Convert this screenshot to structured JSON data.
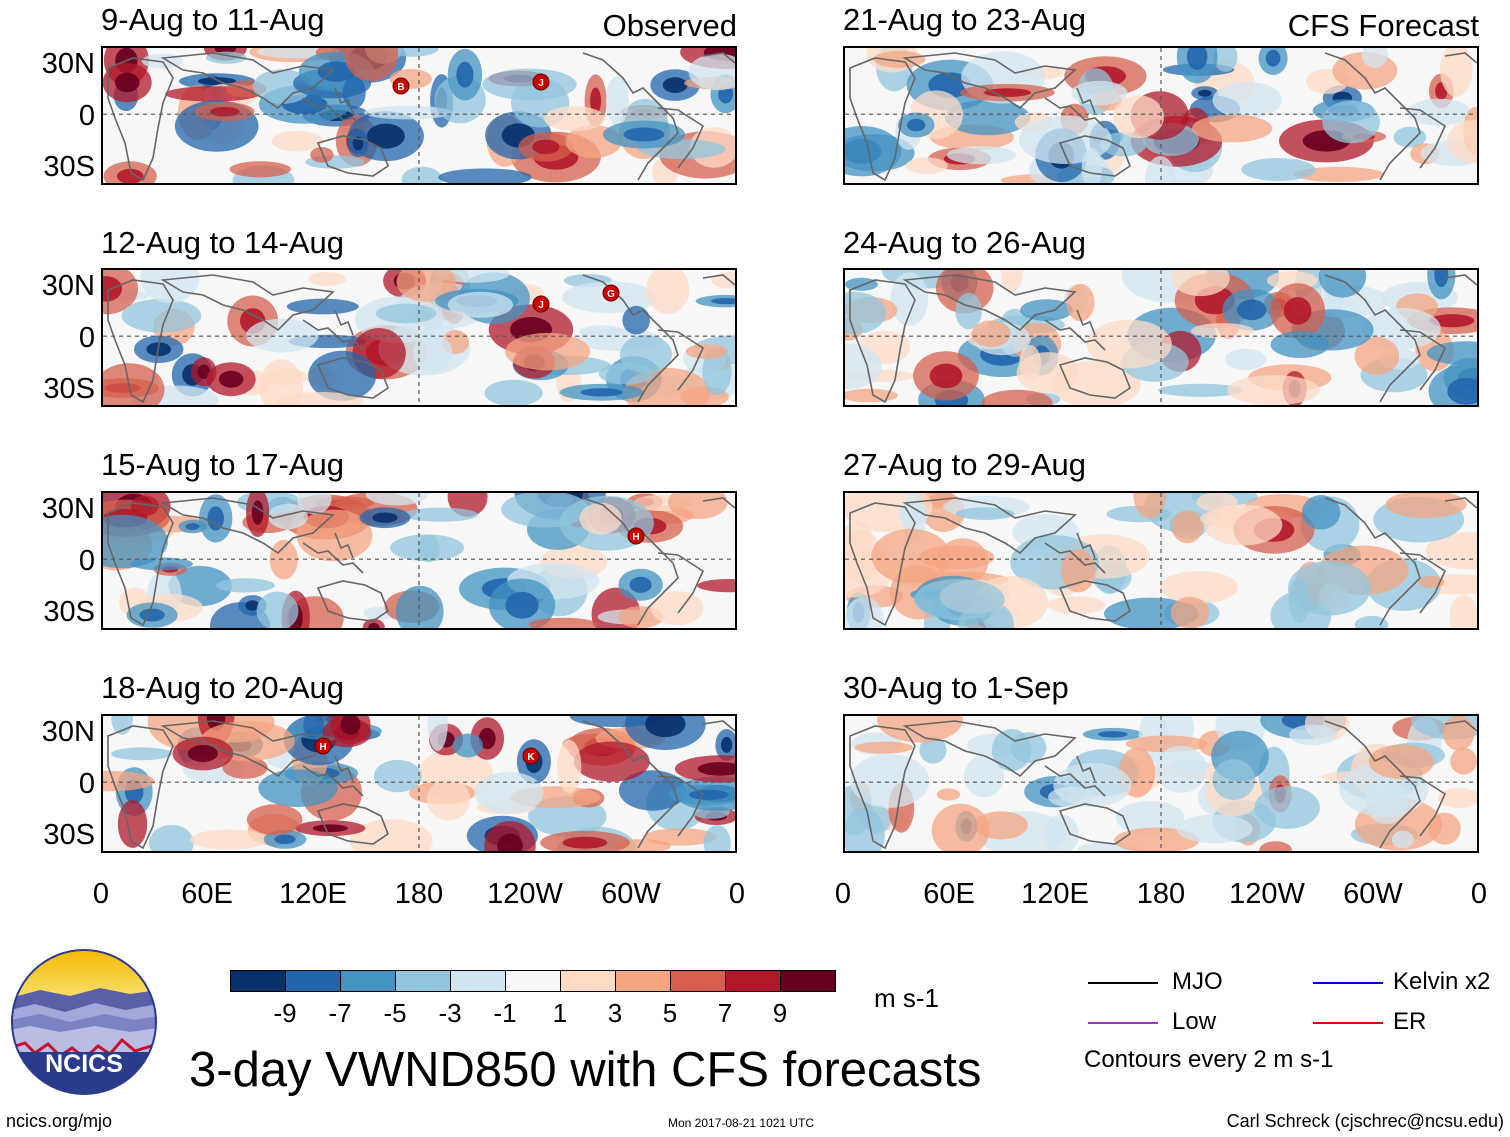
{
  "panels_left": [
    {
      "title": "9-Aug to 11-Aug",
      "corner": "Observed"
    },
    {
      "title": "12-Aug to 14-Aug",
      "corner": ""
    },
    {
      "title": "15-Aug to 17-Aug",
      "corner": ""
    },
    {
      "title": "18-Aug to 20-Aug",
      "corner": ""
    }
  ],
  "panels_right": [
    {
      "title": "21-Aug to 23-Aug",
      "corner": "CFS Forecast"
    },
    {
      "title": "24-Aug to 26-Aug",
      "corner": ""
    },
    {
      "title": "27-Aug to 29-Aug",
      "corner": ""
    },
    {
      "title": "30-Aug to 1-Sep",
      "corner": ""
    }
  ],
  "lat_labels": [
    "30N",
    "0",
    "30S"
  ],
  "lon_labels": [
    "0",
    "60E",
    "120E",
    "180",
    "120W",
    "60W",
    "0"
  ],
  "storm_markers": [
    {
      "panel": 0,
      "letter": "B"
    },
    {
      "panel": 0,
      "letter": "J"
    },
    {
      "panel": 1,
      "letter": "J"
    },
    {
      "panel": 1,
      "letter": "G"
    },
    {
      "panel": 2,
      "letter": "H"
    },
    {
      "panel": 3,
      "letter": "H"
    },
    {
      "panel": 3,
      "letter": "K"
    }
  ],
  "colorbar": {
    "labels": [
      "-9",
      "-7",
      "-5",
      "-3",
      "-1",
      "1",
      "3",
      "5",
      "7",
      "9"
    ],
    "colors": [
      "#08306b",
      "#2166ac",
      "#4393c3",
      "#92c5de",
      "#d1e5f0",
      "#f7f7f7",
      "#fddbc7",
      "#f4a582",
      "#d6604d",
      "#b2182b",
      "#67001f"
    ],
    "units": "m s-1"
  },
  "legend": {
    "items": [
      {
        "label": "MJO",
        "color": "#000000"
      },
      {
        "label": "Kelvin x2",
        "color": "#0000cc"
      },
      {
        "label": "Low",
        "color": "#9933cc"
      },
      {
        "label": "ER",
        "color": "#dd0000"
      }
    ],
    "contours": "Contours every 2 m s-1"
  },
  "logo_text": "NCICS",
  "main_title": "3-day VWND850 with CFS forecasts",
  "footer": {
    "url": "ncics.org/mjo",
    "timestamp": "Mon 2017-08-21 1021 UTC",
    "credit": "Carl Schreck (cjschrec@ncsu.edu)"
  }
}
